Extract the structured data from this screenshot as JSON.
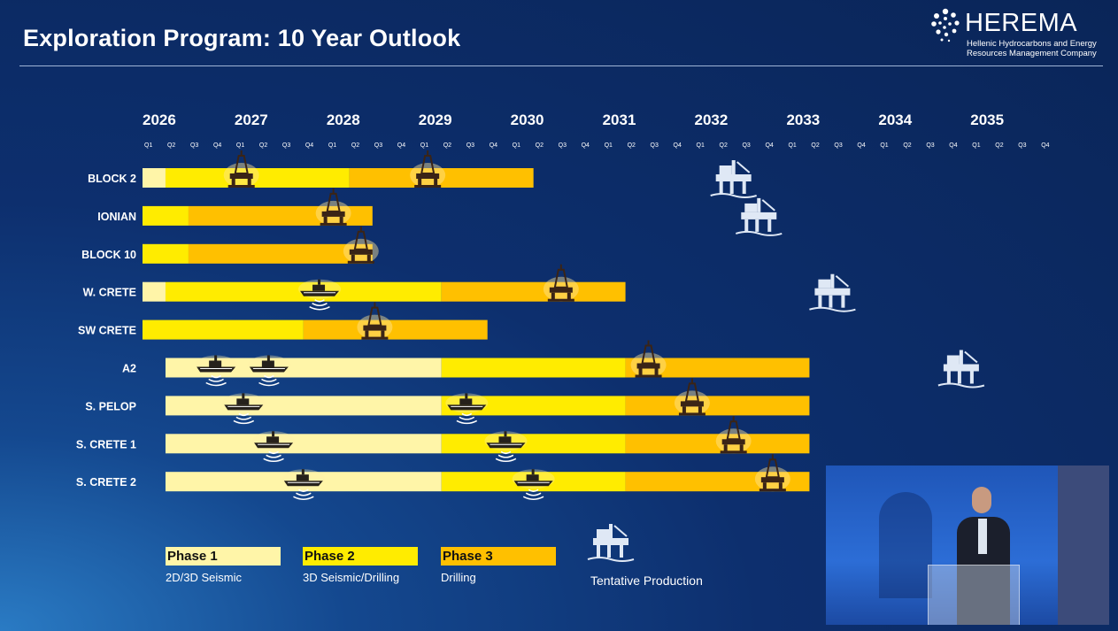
{
  "title": "Exploration Program: 10 Year Outlook",
  "logo": {
    "name": "HEREMA",
    "subtitle_line1": "Hellenic Hydrocarbons and Energy",
    "subtitle_line2": "Resources Management Company"
  },
  "colors": {
    "phase1": "#fff5a8",
    "phase2": "#ffec00",
    "phase3": "#ffc000",
    "background": "#0d2f6e"
  },
  "chart_data": {
    "type": "gantt",
    "years": [
      "2026",
      "2027",
      "2028",
      "2029",
      "2030",
      "2031",
      "2032",
      "2033",
      "2034",
      "2035"
    ],
    "quarters": [
      "Q1",
      "Q2",
      "Q3",
      "Q4"
    ],
    "x_unit": "quarter index from 2026 Q1",
    "rows": [
      {
        "label": "BLOCK 2",
        "segments": [
          {
            "phase": 1,
            "start": 0,
            "end": 1
          },
          {
            "phase": 2,
            "start": 1,
            "end": 9
          },
          {
            "phase": 3,
            "start": 9,
            "end": 17
          }
        ],
        "seismic": [],
        "drilling": [
          4.3,
          12.4
        ],
        "production": 25.7
      },
      {
        "label": "IONIAN",
        "segments": [
          {
            "phase": 2,
            "start": 0,
            "end": 2
          },
          {
            "phase": 3,
            "start": 2,
            "end": 10
          }
        ],
        "seismic": [],
        "drilling": [
          8.3
        ],
        "production": 26.8
      },
      {
        "label": "BLOCK 10",
        "segments": [
          {
            "phase": 2,
            "start": 0,
            "end": 2
          },
          {
            "phase": 3,
            "start": 2,
            "end": 10
          }
        ],
        "seismic": [],
        "drilling": [
          9.5
        ],
        "production": null
      },
      {
        "label": "W. CRETE",
        "segments": [
          {
            "phase": 1,
            "start": 0,
            "end": 1
          },
          {
            "phase": 2,
            "start": 1,
            "end": 13
          },
          {
            "phase": 3,
            "start": 13,
            "end": 21
          }
        ],
        "seismic": [
          7.7
        ],
        "drilling": [
          18.2
        ],
        "production": 30.0
      },
      {
        "label": "SW CRETE",
        "segments": [
          {
            "phase": 2,
            "start": 0,
            "end": 7
          },
          {
            "phase": 3,
            "start": 7,
            "end": 15
          }
        ],
        "seismic": [],
        "drilling": [
          10.1
        ],
        "production": null
      },
      {
        "label": "A2",
        "segments": [
          {
            "phase": 1,
            "start": 1,
            "end": 13
          },
          {
            "phase": 2,
            "start": 13,
            "end": 21
          },
          {
            "phase": 3,
            "start": 21,
            "end": 29
          }
        ],
        "seismic": [
          3.2,
          5.5
        ],
        "drilling": [
          22.0
        ],
        "production": 35.6
      },
      {
        "label": "S. PELOP",
        "segments": [
          {
            "phase": 1,
            "start": 1,
            "end": 13
          },
          {
            "phase": 2,
            "start": 13,
            "end": 21
          },
          {
            "phase": 3,
            "start": 21,
            "end": 29
          }
        ],
        "seismic": [
          4.4,
          14.1
        ],
        "drilling": [
          23.9
        ],
        "production": null
      },
      {
        "label": "S. CRETE 1",
        "segments": [
          {
            "phase": 1,
            "start": 1,
            "end": 13
          },
          {
            "phase": 2,
            "start": 13,
            "end": 21
          },
          {
            "phase": 3,
            "start": 21,
            "end": 29
          }
        ],
        "seismic": [
          5.7,
          15.8
        ],
        "drilling": [
          25.7
        ],
        "production": null
      },
      {
        "label": "S. CRETE 2",
        "segments": [
          {
            "phase": 1,
            "start": 1,
            "end": 13
          },
          {
            "phase": 2,
            "start": 13,
            "end": 21
          },
          {
            "phase": 3,
            "start": 21,
            "end": 29
          }
        ],
        "seismic": [
          7.0,
          17.0
        ],
        "drilling": [
          27.4
        ],
        "production": null
      }
    ],
    "legend": [
      {
        "phase": 1,
        "label": "Phase 1",
        "desc": "2D/3D Seismic"
      },
      {
        "phase": 2,
        "label": "Phase 2",
        "desc": "3D Seismic/Drilling"
      },
      {
        "phase": 3,
        "label": "Phase 3",
        "desc": "Drilling"
      }
    ],
    "production_label": "Tentative Production"
  }
}
